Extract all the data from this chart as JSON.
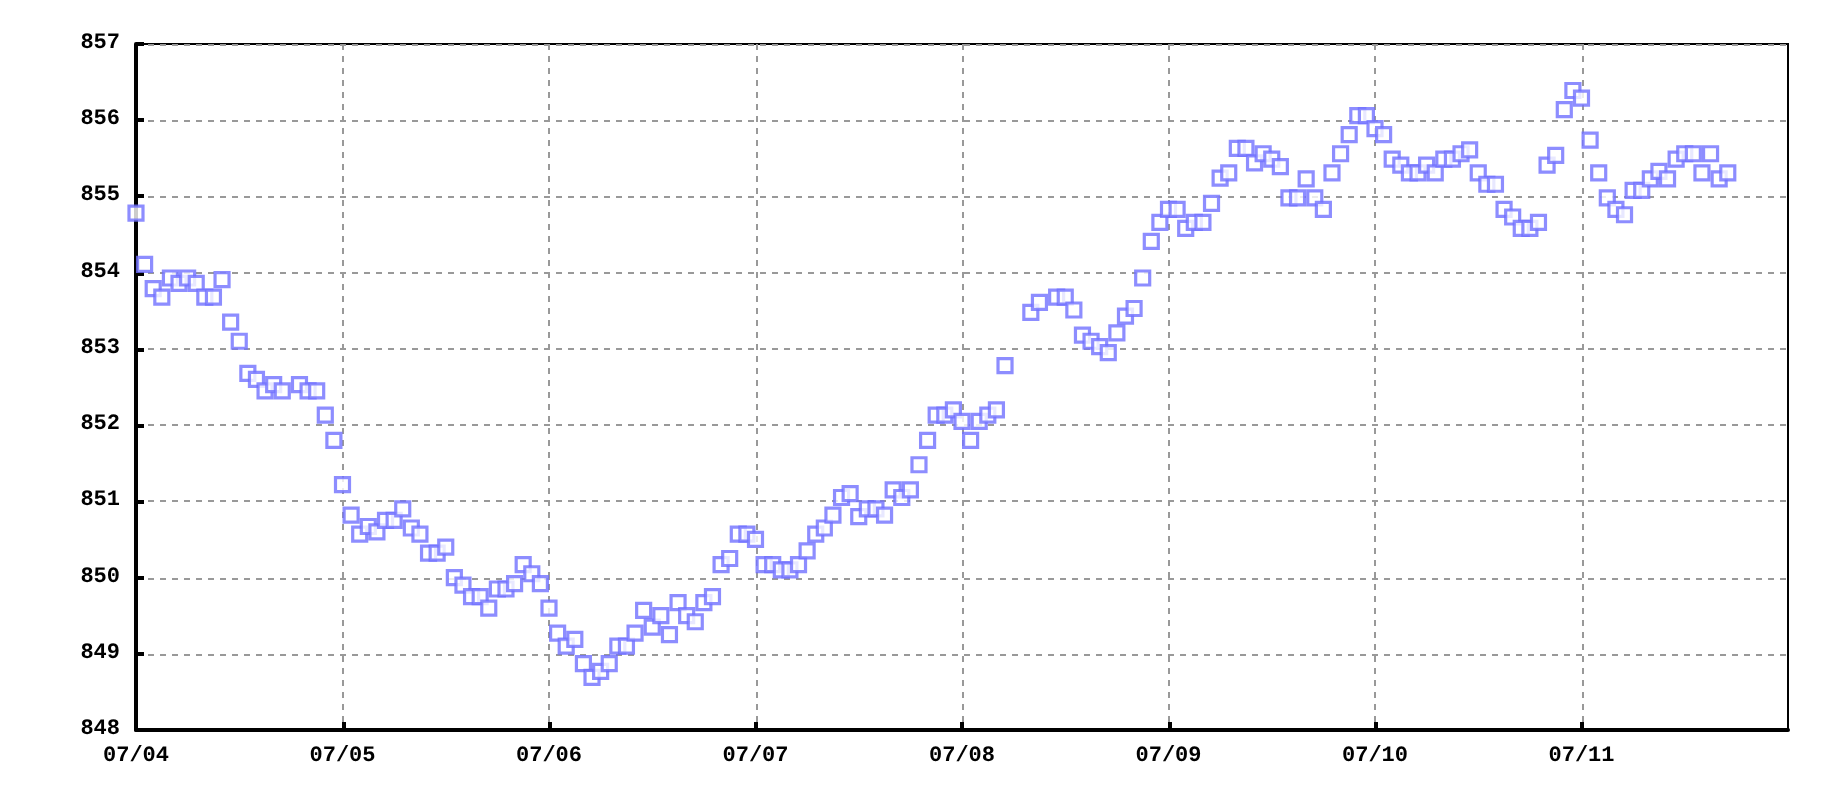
{
  "chart_data": {
    "type": "scatter",
    "marker": "square",
    "grid": true,
    "xlim": [
      "--07-04",
      "--07-12"
    ],
    "xticks": [
      {
        "value": "--07-04",
        "label": "07/04"
      },
      {
        "value": "--07-05",
        "label": "07/05"
      },
      {
        "value": "--07-06",
        "label": "07/06"
      },
      {
        "value": "--07-07",
        "label": "07/07"
      },
      {
        "value": "--07-08",
        "label": "07/08"
      },
      {
        "value": "--07-09",
        "label": "07/09"
      },
      {
        "value": "--07-10",
        "label": "07/10"
      },
      {
        "value": "--07-11",
        "label": "07/11"
      }
    ],
    "ylim": [
      848,
      857
    ],
    "yticks": [
      848,
      849,
      850,
      851,
      852,
      853,
      854,
      855,
      856,
      857
    ],
    "series": [
      {
        "color": "#7070ff",
        "x": [
          "--07-04T00:00",
          "--07-04T01:00",
          "--07-04T02:00",
          "--07-04T03:00",
          "--07-04T04:00",
          "--07-04T05:00",
          "--07-04T06:00",
          "--07-04T07:00",
          "--07-04T08:00",
          "--07-04T09:00",
          "--07-04T10:00",
          "--07-04T11:00",
          "--07-04T12:00",
          "--07-04T13:00",
          "--07-04T14:00",
          "--07-04T15:00",
          "--07-04T16:00",
          "--07-04T17:00",
          "--07-04T19:00",
          "--07-04T20:00",
          "--07-04T21:00",
          "--07-04T22:00",
          "--07-04T23:00",
          "--07-05T00:00",
          "--07-05T01:00",
          "--07-05T02:00",
          "--07-05T03:00",
          "--07-05T04:00",
          "--07-05T05:00",
          "--07-05T06:00",
          "--07-05T07:00",
          "--07-05T08:00",
          "--07-05T09:00",
          "--07-05T10:00",
          "--07-05T11:00",
          "--07-05T12:00",
          "--07-05T13:00",
          "--07-05T14:00",
          "--07-05T15:00",
          "--07-05T16:00",
          "--07-05T17:00",
          "--07-05T18:00",
          "--07-05T19:00",
          "--07-05T20:00",
          "--07-05T21:00",
          "--07-05T22:00",
          "--07-05T23:00",
          "--07-06T00:00",
          "--07-06T01:00",
          "--07-06T02:00",
          "--07-06T03:00",
          "--07-06T04:00",
          "--07-06T05:00",
          "--07-06T06:00",
          "--07-06T07:00",
          "--07-06T08:00",
          "--07-06T09:00",
          "--07-06T10:00",
          "--07-06T11:00",
          "--07-06T12:00",
          "--07-06T13:00",
          "--07-06T14:00",
          "--07-06T15:00",
          "--07-06T16:00",
          "--07-06T17:00",
          "--07-06T18:00",
          "--07-06T19:00",
          "--07-06T20:00",
          "--07-06T21:00",
          "--07-06T22:00",
          "--07-06T23:00",
          "--07-07T00:00",
          "--07-07T01:00",
          "--07-07T02:00",
          "--07-07T03:00",
          "--07-07T04:00",
          "--07-07T05:00",
          "--07-07T06:00",
          "--07-07T07:00",
          "--07-07T08:00",
          "--07-07T09:00",
          "--07-07T10:00",
          "--07-07T11:00",
          "--07-07T12:00",
          "--07-07T13:00",
          "--07-07T14:00",
          "--07-07T15:00",
          "--07-07T16:00",
          "--07-07T17:00",
          "--07-07T18:00",
          "--07-07T19:00",
          "--07-07T20:00",
          "--07-07T21:00",
          "--07-07T22:00",
          "--07-07T23:00",
          "--07-08T00:00",
          "--07-08T01:00",
          "--07-08T02:00",
          "--07-08T03:00",
          "--07-08T04:00",
          "--07-08T05:00",
          "--07-08T08:00",
          "--07-08T09:00",
          "--07-08T11:00",
          "--07-08T12:00",
          "--07-08T13:00",
          "--07-08T14:00",
          "--07-08T15:00",
          "--07-08T16:00",
          "--07-08T17:00",
          "--07-08T18:00",
          "--07-08T19:00",
          "--07-08T20:00",
          "--07-08T21:00",
          "--07-08T22:00",
          "--07-08T23:00",
          "--07-09T00:00",
          "--07-09T01:00",
          "--07-09T02:00",
          "--07-09T03:00",
          "--07-09T04:00",
          "--07-09T05:00",
          "--07-09T06:00",
          "--07-09T07:00",
          "--07-09T08:00",
          "--07-09T09:00",
          "--07-09T10:00",
          "--07-09T11:00",
          "--07-09T12:00",
          "--07-09T13:00",
          "--07-09T14:00",
          "--07-09T15:00",
          "--07-09T16:00",
          "--07-09T17:00",
          "--07-09T18:00",
          "--07-09T19:00",
          "--07-09T20:00",
          "--07-09T21:00",
          "--07-09T22:00",
          "--07-09T23:00",
          "--07-10T00:00",
          "--07-10T01:00",
          "--07-10T02:00",
          "--07-10T03:00",
          "--07-10T04:00",
          "--07-10T05:00",
          "--07-10T06:00",
          "--07-10T07:00",
          "--07-10T08:00",
          "--07-10T09:00",
          "--07-10T10:00",
          "--07-10T11:00",
          "--07-10T12:00",
          "--07-10T13:00",
          "--07-10T14:00",
          "--07-10T15:00",
          "--07-10T16:00",
          "--07-10T17:00",
          "--07-10T18:00",
          "--07-10T19:00",
          "--07-10T20:00",
          "--07-10T21:00",
          "--07-10T22:00",
          "--07-10T23:00",
          "--07-11T00:00",
          "--07-11T01:00",
          "--07-11T02:00",
          "--07-11T03:00",
          "--07-11T04:00",
          "--07-11T05:00",
          "--07-11T06:00",
          "--07-11T07:00",
          "--07-11T08:00",
          "--07-11T09:00",
          "--07-11T10:00",
          "--07-11T11:00",
          "--07-11T12:00",
          "--07-11T13:00",
          "--07-11T14:00",
          "--07-11T15:00",
          "--07-11T16:00",
          "--07-11T17:00"
        ],
        "values": [
          854.78,
          854.11,
          853.79,
          853.68,
          853.93,
          853.86,
          853.93,
          853.86,
          853.68,
          853.68,
          853.91,
          853.35,
          853.1,
          852.68,
          852.6,
          852.45,
          852.53,
          852.45,
          852.53,
          852.45,
          852.45,
          852.13,
          851.8,
          851.22,
          850.82,
          850.57,
          850.67,
          850.6,
          850.75,
          850.75,
          850.9,
          850.65,
          850.57,
          850.32,
          850.32,
          850.4,
          850.0,
          849.9,
          849.75,
          849.75,
          849.6,
          849.85,
          849.85,
          849.92,
          850.17,
          850.05,
          849.92,
          849.6,
          849.27,
          849.1,
          849.19,
          848.87,
          848.69,
          848.77,
          848.87,
          849.1,
          849.1,
          849.27,
          849.57,
          849.35,
          849.5,
          849.25,
          849.67,
          849.5,
          849.42,
          849.67,
          849.75,
          850.17,
          850.25,
          850.57,
          850.57,
          850.5,
          850.17,
          850.17,
          850.1,
          850.1,
          850.17,
          850.35,
          850.57,
          850.65,
          850.82,
          851.05,
          851.1,
          850.8,
          850.9,
          850.9,
          850.82,
          851.15,
          851.05,
          851.15,
          851.48,
          851.8,
          852.13,
          852.13,
          852.2,
          852.05,
          851.8,
          852.05,
          852.13,
          852.2,
          852.78,
          853.48,
          853.61,
          853.68,
          853.68,
          853.51,
          853.18,
          853.1,
          853.03,
          852.95,
          853.21,
          853.43,
          853.53,
          853.93,
          854.41,
          854.66,
          854.83,
          854.83,
          854.58,
          854.66,
          854.66,
          854.91,
          855.24,
          855.31,
          855.63,
          855.63,
          855.44,
          855.56,
          855.49,
          855.39,
          854.98,
          854.98,
          855.23,
          854.98,
          854.83,
          855.31,
          855.56,
          855.81,
          856.06,
          856.06,
          855.89,
          855.81,
          855.49,
          855.41,
          855.31,
          855.31,
          855.41,
          855.31,
          855.49,
          855.49,
          855.56,
          855.61,
          855.31,
          855.16,
          855.16,
          854.83,
          854.73,
          854.58,
          854.58,
          854.66,
          855.41,
          855.54,
          856.14,
          856.39,
          856.29,
          855.74,
          855.31,
          854.98,
          854.83,
          854.76,
          855.08,
          855.08,
          855.23,
          855.33,
          855.23,
          855.49,
          855.56,
          855.56,
          855.31,
          855.56,
          855.23,
          855.31
        ]
      }
    ]
  }
}
